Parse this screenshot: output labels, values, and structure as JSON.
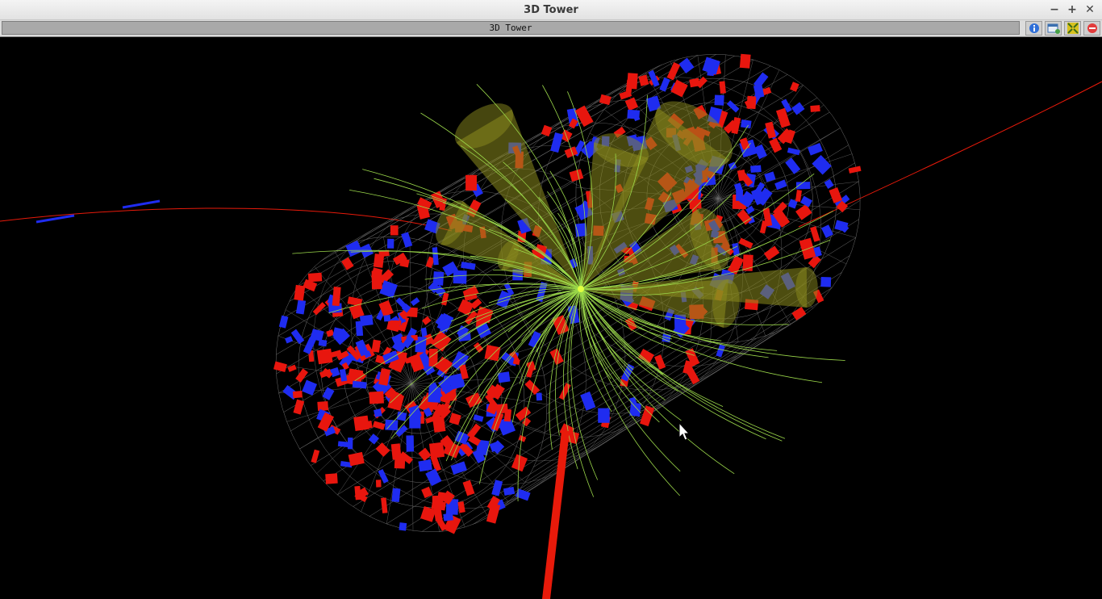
{
  "window": {
    "title": "3D Tower"
  },
  "view": {
    "tab_label": "3D Tower"
  },
  "titlebar_buttons": [
    {
      "icon": "minimize-icon",
      "glyph": "−"
    },
    {
      "icon": "maximize-icon",
      "glyph": "+"
    },
    {
      "icon": "close-icon",
      "glyph": "✕"
    }
  ],
  "toolbar_buttons": [
    {
      "icon": "info-icon",
      "color": "#2f6fd8"
    },
    {
      "icon": "new-window-icon",
      "color": "#3b6fb0"
    },
    {
      "icon": "fullscreen-icon",
      "color": "#d8c21e"
    },
    {
      "icon": "remove-icon",
      "color": "#e23c3c"
    }
  ],
  "colors": {
    "tower_red": "#e8160e",
    "tower_blue": "#1f2cf0",
    "jet_cone": "#8c8c1e",
    "track": "#9bd84a",
    "muon": "#e81a0a",
    "mesh": "#6f6f6f"
  }
}
